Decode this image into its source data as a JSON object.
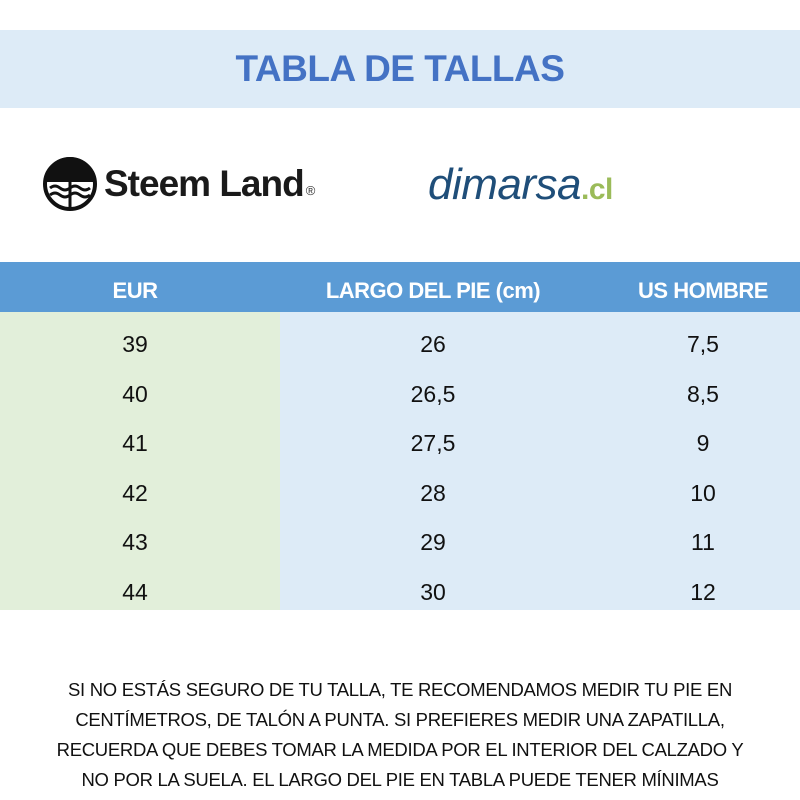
{
  "header": {
    "title": "TABLA DE TALLAS"
  },
  "logos": {
    "steemland": "Steem Land",
    "steemland_reg": "®",
    "dimarsa_main": "dimarsa",
    "dimarsa_tld": ".cl"
  },
  "table": {
    "columns": [
      "EUR",
      "LARGO DEL PIE (cm)",
      "US HOMBRE"
    ],
    "rows": [
      [
        "39",
        "26",
        "7,5"
      ],
      [
        "40",
        "26,5",
        "8,5"
      ],
      [
        "41",
        "27,5",
        "9"
      ],
      [
        "42",
        "28",
        "10"
      ],
      [
        "43",
        "29",
        "11"
      ],
      [
        "44",
        "30",
        "12"
      ]
    ]
  },
  "note": {
    "lines": [
      "SI NO ESTÁS SEGURO DE TU TALLA, TE RECOMENDAMOS MEDIR TU PIE EN",
      "CENTÍMETROS, DE TALÓN A PUNTA. SI PREFIERES MEDIR UNA ZAPATILLA,",
      "RECUERDA QUE DEBES TOMAR LA MEDIDA POR EL INTERIOR DEL CALZADO Y",
      "NO POR LA SUELA. EL LARGO DEL PIE EN TABLA PUEDE TENER MÍNIMAS"
    ]
  },
  "colors": {
    "title": "#4472c4",
    "header_bg": "#5b9bd5",
    "eur_col_bg": "#e2efda",
    "other_col_bg": "#ddebf7",
    "band": "#ddebf7"
  }
}
